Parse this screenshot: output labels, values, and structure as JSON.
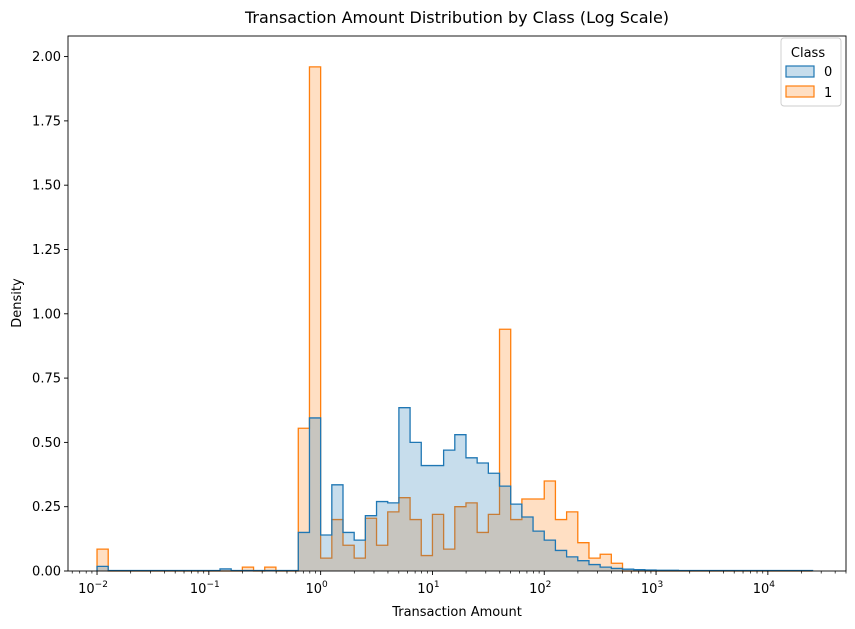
{
  "chart_data": {
    "type": "histogram",
    "element": "step",
    "title": "Transaction Amount Distribution by Class (Log Scale)",
    "xlabel": "Transaction Amount",
    "ylabel": "Density",
    "x_scale": "log",
    "x_range": [
      0.0055,
      50000
    ],
    "y_range": [
      0,
      2.08
    ],
    "y_ticks": [
      "0.00",
      "0.25",
      "0.50",
      "0.75",
      "1.00",
      "1.25",
      "1.50",
      "1.75",
      "2.00"
    ],
    "y_tick_values": [
      0,
      0.25,
      0.5,
      0.75,
      1.0,
      1.25,
      1.5,
      1.75,
      2.0
    ],
    "x_ticks": [
      {
        "value": 0.01,
        "base": "10",
        "exp": "−2"
      },
      {
        "value": 0.1,
        "base": "10",
        "exp": "−1"
      },
      {
        "value": 1,
        "base": "10",
        "exp": "0"
      },
      {
        "value": 10,
        "base": "10",
        "exp": "1"
      },
      {
        "value": 100,
        "base": "10",
        "exp": "2"
      },
      {
        "value": 1000,
        "base": "10",
        "exp": "3"
      },
      {
        "value": 10000,
        "base": "10",
        "exp": "4"
      }
    ],
    "bin_edges_log10": [
      -2,
      -1.9,
      -1.8,
      -1.7,
      -1.6,
      -1.5,
      -1.4,
      -1.3,
      -1.2,
      -1.1,
      -1.0,
      -0.9,
      -0.8,
      -0.7,
      -0.6,
      -0.5,
      -0.4,
      -0.3,
      -0.2,
      -0.1,
      0.0,
      0.1,
      0.2,
      0.3,
      0.4,
      0.5,
      0.6,
      0.7,
      0.8,
      0.9,
      1.0,
      1.1,
      1.2,
      1.3,
      1.4,
      1.5,
      1.6,
      1.7,
      1.8,
      1.9,
      2.0,
      2.1,
      2.2,
      2.3,
      2.4,
      2.5,
      2.6,
      2.7,
      2.8,
      2.9,
      3.0,
      3.1,
      3.2,
      3.3,
      3.4,
      3.5,
      3.6,
      3.7,
      3.8,
      3.9,
      4.0,
      4.1,
      4.2,
      4.3,
      4.4
    ],
    "legend": {
      "title": "Class",
      "position": "top-right"
    },
    "series": [
      {
        "name": "1",
        "color": "#ff7f0e",
        "values": [
          0.085,
          0,
          0,
          0,
          0,
          0,
          0,
          0,
          0,
          0,
          0,
          0,
          0,
          0.015,
          0,
          0.015,
          0,
          0,
          0.555,
          1.96,
          0.05,
          0.2,
          0.1,
          0.05,
          0.205,
          0.1,
          0.23,
          0.285,
          0.2,
          0.06,
          0.22,
          0.085,
          0.25,
          0.265,
          0.15,
          0.22,
          0.94,
          0.2,
          0.28,
          0.28,
          0.35,
          0.2,
          0.23,
          0.11,
          0.05,
          0.065,
          0.03,
          0,
          0,
          0,
          0,
          0,
          0,
          0,
          0,
          0,
          0,
          0,
          0,
          0,
          0,
          0,
          0,
          0
        ]
      },
      {
        "name": "0",
        "color": "#1f77b4",
        "values": [
          0.018,
          0.002,
          0.002,
          0.002,
          0.002,
          0.002,
          0.002,
          0.002,
          0.002,
          0.002,
          0.002,
          0.008,
          0.002,
          0.002,
          0.002,
          0.002,
          0.002,
          0.002,
          0.15,
          0.595,
          0.14,
          0.335,
          0.15,
          0.12,
          0.215,
          0.27,
          0.265,
          0.635,
          0.5,
          0.41,
          0.41,
          0.47,
          0.53,
          0.44,
          0.42,
          0.38,
          0.33,
          0.26,
          0.21,
          0.155,
          0.12,
          0.08,
          0.055,
          0.04,
          0.025,
          0.015,
          0.01,
          0.007,
          0.005,
          0.004,
          0.003,
          0.003,
          0.002,
          0.002,
          0.002,
          0.002,
          0.002,
          0.002,
          0.002,
          0.002,
          0.002,
          0.002,
          0.002,
          0.002
        ]
      }
    ]
  }
}
